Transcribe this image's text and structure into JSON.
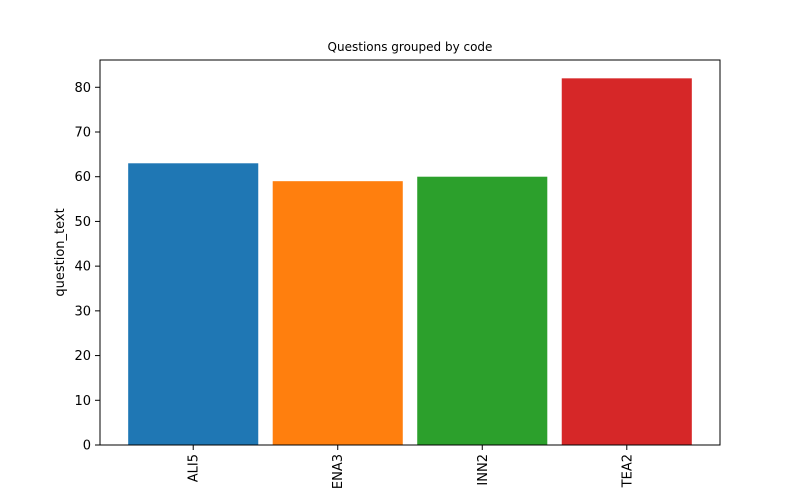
{
  "chart_data": {
    "type": "bar",
    "title": "Questions grouped by code",
    "xlabel": "",
    "ylabel": "question_text",
    "categories": [
      "ALI5",
      "ENA3",
      "INN2",
      "TEA2"
    ],
    "values": [
      63,
      59,
      60,
      82
    ],
    "colors": [
      "#1f77b4",
      "#ff7f0e",
      "#2ca02c",
      "#d62728"
    ],
    "ylim": [
      0,
      86.1
    ],
    "yticks": [
      0,
      10,
      20,
      30,
      40,
      50,
      60,
      70,
      80
    ],
    "grid": false,
    "legend": "none"
  }
}
